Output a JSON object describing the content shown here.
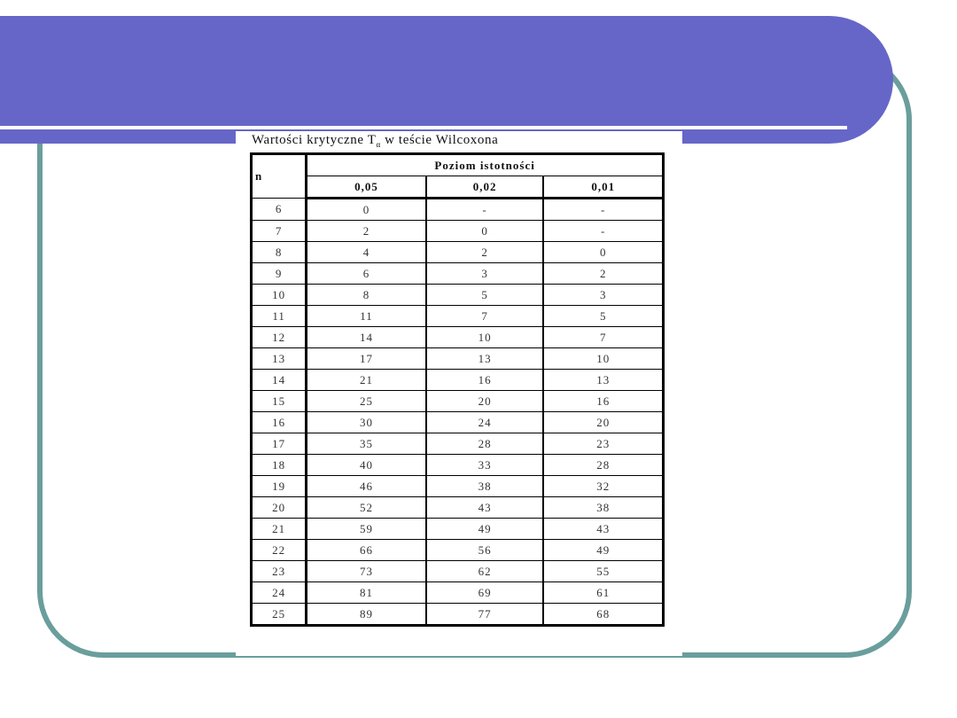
{
  "colors": {
    "banner": "#6666c8",
    "frame": "#6a9e9c"
  },
  "table": {
    "caption_prefix": "Wartości krytyczne T",
    "caption_sub": "α",
    "caption_suffix": " w teście Wilcoxona",
    "n_header": "n",
    "group_header": "Poziom istotności",
    "levels": [
      "0,05",
      "0,02",
      "0,01"
    ],
    "rows": [
      [
        "6",
        "0",
        "-",
        "-"
      ],
      [
        "7",
        "2",
        "0",
        "-"
      ],
      [
        "8",
        "4",
        "2",
        "0"
      ],
      [
        "9",
        "6",
        "3",
        "2"
      ],
      [
        "10",
        "8",
        "5",
        "3"
      ],
      [
        "11",
        "11",
        "7",
        "5"
      ],
      [
        "12",
        "14",
        "10",
        "7"
      ],
      [
        "13",
        "17",
        "13",
        "10"
      ],
      [
        "14",
        "21",
        "16",
        "13"
      ],
      [
        "15",
        "25",
        "20",
        "16"
      ],
      [
        "16",
        "30",
        "24",
        "20"
      ],
      [
        "17",
        "35",
        "28",
        "23"
      ],
      [
        "18",
        "40",
        "33",
        "28"
      ],
      [
        "19",
        "46",
        "38",
        "32"
      ],
      [
        "20",
        "52",
        "43",
        "38"
      ],
      [
        "21",
        "59",
        "49",
        "43"
      ],
      [
        "22",
        "66",
        "56",
        "49"
      ],
      [
        "23",
        "73",
        "62",
        "55"
      ],
      [
        "24",
        "81",
        "69",
        "61"
      ],
      [
        "25",
        "89",
        "77",
        "68"
      ]
    ]
  }
}
